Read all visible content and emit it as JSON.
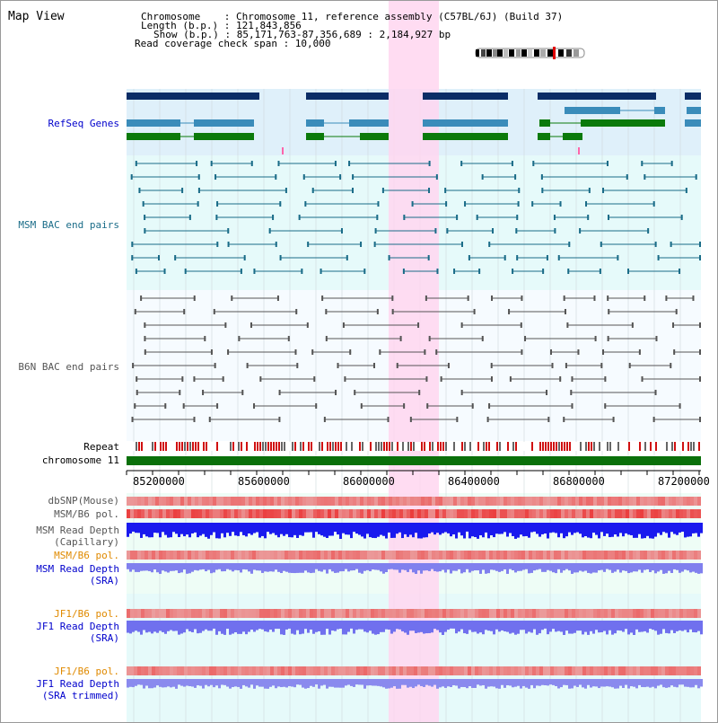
{
  "header": {
    "title": "Map View",
    "info_lines": [
      "Chromosome    : Chromosome 11, reference assembly (C57BL/6J) (Build 37)",
      "Length (b.p.) : 121,843,856",
      "Show (b.p.) : 85,171,763-87,356,689 : 2,184,927 bp",
      "Read coverage check span : 10,000"
    ]
  },
  "tracks": {
    "refseq": "RefSeq Genes",
    "msm_bac": "MSM BAC end pairs",
    "b6n_bac": "B6N BAC end pairs",
    "repeat": "Repeat",
    "chromosome": "chromosome 11",
    "dbsnp": "dbSNP(Mouse)",
    "msm_b6_pol_1": "MSM/B6 pol.",
    "msm_rd_cap_1": "MSM Read Depth",
    "msm_rd_cap_2": "(Capillary)",
    "msm_b6_pol_2": "MSM/B6 pol.",
    "msm_rd_sra_1": "MSM Read Depth",
    "msm_rd_sra_2": "(SRA)",
    "jf1_b6_pol_1": "JF1/B6 pol.",
    "jf1_rd_sra_1": "JF1 Read Depth",
    "jf1_rd_sra_2": "(SRA)",
    "jf1_b6_pol_2": "JF1/B6 pol.",
    "jf1_rd_trim_1": "JF1 Read Depth",
    "jf1_rd_trim_2": "(SRA trimmed)"
  },
  "axis": {
    "ticks": [
      "85200000",
      "85600000",
      "86000000",
      "86400000",
      "86800000",
      "87200000"
    ]
  },
  "colors": {
    "gene_dark": "#0b2d66",
    "gene_mid": "#3a8cba",
    "gene_green": "#0b7a0b",
    "msm_bac": "#1a6c88",
    "b6n_bac": "#555555",
    "label_blue": "#0000cc",
    "label_orange": "#e08a00",
    "highlight": "#ffd6f0",
    "chrom_bar": "#0a700a"
  }
}
